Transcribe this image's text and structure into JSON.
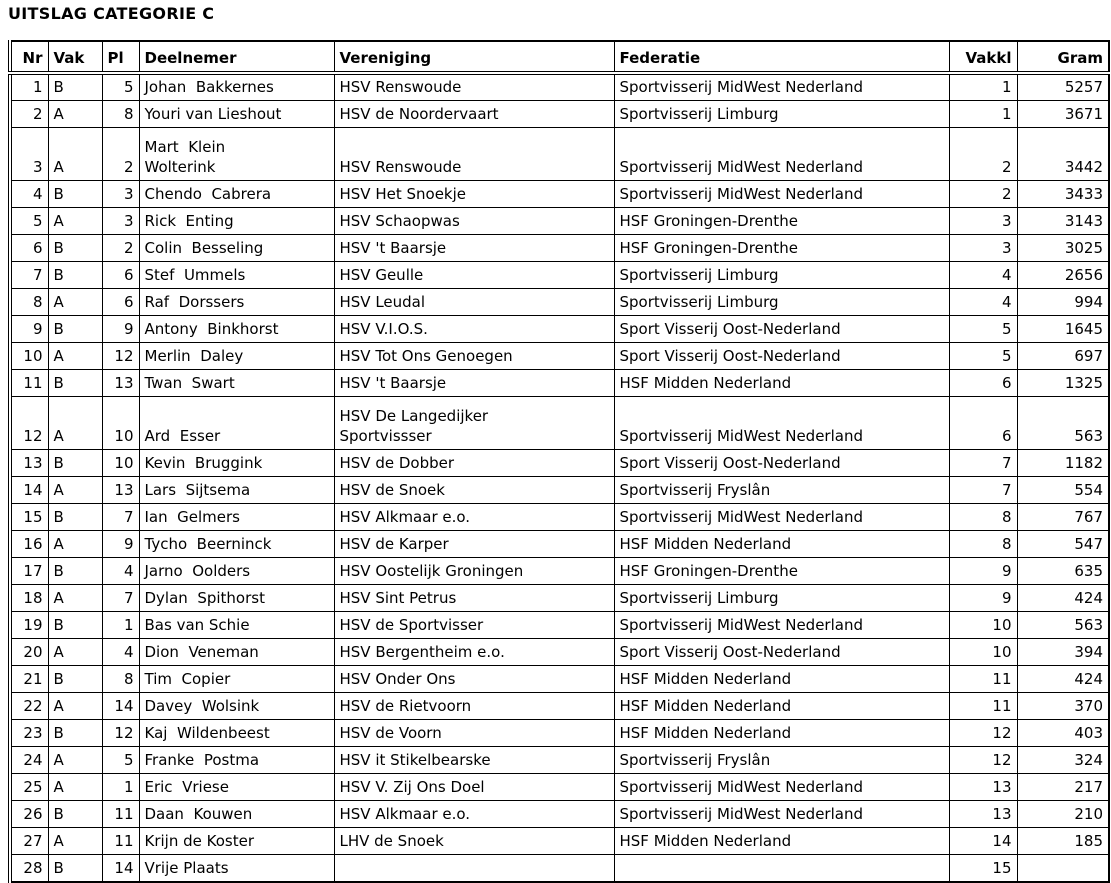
{
  "title": "UITSLAG CATEGORIE C",
  "colors": {
    "background": "#ffffff",
    "text": "#000000",
    "border": "#000000"
  },
  "table": {
    "columns": [
      {
        "key": "nr",
        "label": "Nr"
      },
      {
        "key": "vak",
        "label": "Vak"
      },
      {
        "key": "pl",
        "label": "Pl"
      },
      {
        "key": "deelnemer",
        "label": "Deelnemer"
      },
      {
        "key": "vereniging",
        "label": "Vereniging"
      },
      {
        "key": "federatie",
        "label": "Federatie"
      },
      {
        "key": "vakkl",
        "label": "Vakkl"
      },
      {
        "key": "gram",
        "label": "Gram"
      }
    ],
    "rows": [
      {
        "nr": "1",
        "vak": "B",
        "pl": "5",
        "deelnemer": "Johan  Bakkernes",
        "vereniging": "HSV Renswoude",
        "federatie": "Sportvisserij MidWest Nederland",
        "vakkl": "1",
        "gram": "5257"
      },
      {
        "nr": "2",
        "vak": "A",
        "pl": "8",
        "deelnemer": "Youri van Lieshout",
        "vereniging": "HSV de Noordervaart",
        "federatie": "Sportvisserij Limburg",
        "vakkl": "1",
        "gram": "3671"
      },
      {
        "nr": "3",
        "vak": "A",
        "pl": "2",
        "deelnemer": "Mart  Klein\nWolterink",
        "vereniging": "HSV Renswoude",
        "federatie": "Sportvisserij MidWest Nederland",
        "vakkl": "2",
        "gram": "3442"
      },
      {
        "nr": "4",
        "vak": "B",
        "pl": "3",
        "deelnemer": "Chendo  Cabrera",
        "vereniging": "HSV Het Snoekje",
        "federatie": "Sportvisserij MidWest Nederland",
        "vakkl": "2",
        "gram": "3433"
      },
      {
        "nr": "5",
        "vak": "A",
        "pl": "3",
        "deelnemer": "Rick  Enting",
        "vereniging": "HSV Schaopwas",
        "federatie": "HSF Groningen-Drenthe",
        "vakkl": "3",
        "gram": "3143"
      },
      {
        "nr": "6",
        "vak": "B",
        "pl": "2",
        "deelnemer": "Colin  Besseling",
        "vereniging": "HSV 't Baarsje",
        "federatie": "HSF Groningen-Drenthe",
        "vakkl": "3",
        "gram": "3025"
      },
      {
        "nr": "7",
        "vak": "B",
        "pl": "6",
        "deelnemer": "Stef  Ummels",
        "vereniging": "HSV Geulle",
        "federatie": "Sportvisserij Limburg",
        "vakkl": "4",
        "gram": "2656"
      },
      {
        "nr": "8",
        "vak": "A",
        "pl": "6",
        "deelnemer": "Raf  Dorssers",
        "vereniging": "HSV Leudal",
        "federatie": "Sportvisserij Limburg",
        "vakkl": "4",
        "gram": "994"
      },
      {
        "nr": "9",
        "vak": "B",
        "pl": "9",
        "deelnemer": "Antony  Binkhorst",
        "vereniging": "HSV V.I.O.S.",
        "federatie": "Sport Visserij Oost-Nederland",
        "vakkl": "5",
        "gram": "1645"
      },
      {
        "nr": "10",
        "vak": "A",
        "pl": "12",
        "deelnemer": "Merlin  Daley",
        "vereniging": "HSV Tot Ons Genoegen",
        "federatie": "Sport Visserij Oost-Nederland",
        "vakkl": "5",
        "gram": "697"
      },
      {
        "nr": "11",
        "vak": "B",
        "pl": "13",
        "deelnemer": "Twan  Swart",
        "vereniging": "HSV 't Baarsje",
        "federatie": "HSF Midden Nederland",
        "vakkl": "6",
        "gram": "1325"
      },
      {
        "nr": "12",
        "vak": "A",
        "pl": "10",
        "deelnemer": "Ard  Esser",
        "vereniging": "HSV De Langedijker\nSportvissser",
        "federatie": "Sportvisserij MidWest Nederland",
        "vakkl": "6",
        "gram": "563"
      },
      {
        "nr": "13",
        "vak": "B",
        "pl": "10",
        "deelnemer": "Kevin  Bruggink",
        "vereniging": "HSV de Dobber",
        "federatie": "Sport Visserij Oost-Nederland",
        "vakkl": "7",
        "gram": "1182"
      },
      {
        "nr": "14",
        "vak": "A",
        "pl": "13",
        "deelnemer": "Lars  Sijtsema",
        "vereniging": "HSV de Snoek",
        "federatie": "Sportvisserij Fryslân",
        "vakkl": "7",
        "gram": "554"
      },
      {
        "nr": "15",
        "vak": "B",
        "pl": "7",
        "deelnemer": "Ian  Gelmers",
        "vereniging": "HSV Alkmaar e.o.",
        "federatie": "Sportvisserij MidWest Nederland",
        "vakkl": "8",
        "gram": "767"
      },
      {
        "nr": "16",
        "vak": "A",
        "pl": "9",
        "deelnemer": "Tycho  Beerninck",
        "vereniging": "HSV de Karper",
        "federatie": "HSF Midden Nederland",
        "vakkl": "8",
        "gram": "547"
      },
      {
        "nr": "17",
        "vak": "B",
        "pl": "4",
        "deelnemer": "Jarno  Oolders",
        "vereniging": "HSV Oostelijk Groningen",
        "federatie": "HSF Groningen-Drenthe",
        "vakkl": "9",
        "gram": "635"
      },
      {
        "nr": "18",
        "vak": "A",
        "pl": "7",
        "deelnemer": "Dylan  Spithorst",
        "vereniging": "HSV Sint Petrus",
        "federatie": "Sportvisserij Limburg",
        "vakkl": "9",
        "gram": "424"
      },
      {
        "nr": "19",
        "vak": "B",
        "pl": "1",
        "deelnemer": "Bas van Schie",
        "vereniging": "HSV de Sportvisser",
        "federatie": "Sportvisserij MidWest Nederland",
        "vakkl": "10",
        "gram": "563"
      },
      {
        "nr": "20",
        "vak": "A",
        "pl": "4",
        "deelnemer": "Dion  Veneman",
        "vereniging": "HSV Bergentheim e.o.",
        "federatie": "Sport Visserij Oost-Nederland",
        "vakkl": "10",
        "gram": "394"
      },
      {
        "nr": "21",
        "vak": "B",
        "pl": "8",
        "deelnemer": "Tim  Copier",
        "vereniging": "HSV Onder Ons",
        "federatie": "HSF Midden Nederland",
        "vakkl": "11",
        "gram": "424"
      },
      {
        "nr": "22",
        "vak": "A",
        "pl": "14",
        "deelnemer": "Davey  Wolsink",
        "vereniging": "HSV de Rietvoorn",
        "federatie": "HSF Midden Nederland",
        "vakkl": "11",
        "gram": "370"
      },
      {
        "nr": "23",
        "vak": "B",
        "pl": "12",
        "deelnemer": "Kaj  Wildenbeest",
        "vereniging": "HSV de Voorn",
        "federatie": "HSF Midden Nederland",
        "vakkl": "12",
        "gram": "403"
      },
      {
        "nr": "24",
        "vak": "A",
        "pl": "5",
        "deelnemer": "Franke  Postma",
        "vereniging": "HSV it Stikelbearske",
        "federatie": "Sportvisserij Fryslân",
        "vakkl": "12",
        "gram": "324"
      },
      {
        "nr": "25",
        "vak": "A",
        "pl": "1",
        "deelnemer": "Eric  Vriese",
        "vereniging": "HSV V. Zij Ons Doel",
        "federatie": "Sportvisserij MidWest Nederland",
        "vakkl": "13",
        "gram": "217"
      },
      {
        "nr": "26",
        "vak": "B",
        "pl": "11",
        "deelnemer": "Daan  Kouwen",
        "vereniging": "HSV Alkmaar e.o.",
        "federatie": "Sportvisserij MidWest Nederland",
        "vakkl": "13",
        "gram": "210"
      },
      {
        "nr": "27",
        "vak": "A",
        "pl": "11",
        "deelnemer": "Krijn de Koster",
        "vereniging": "LHV de Snoek",
        "federatie": "HSF Midden Nederland",
        "vakkl": "14",
        "gram": "185"
      },
      {
        "nr": "28",
        "vak": "B",
        "pl": "14",
        "deelnemer": "Vrije Plaats",
        "vereniging": "",
        "federatie": "",
        "vakkl": "15",
        "gram": ""
      }
    ]
  }
}
